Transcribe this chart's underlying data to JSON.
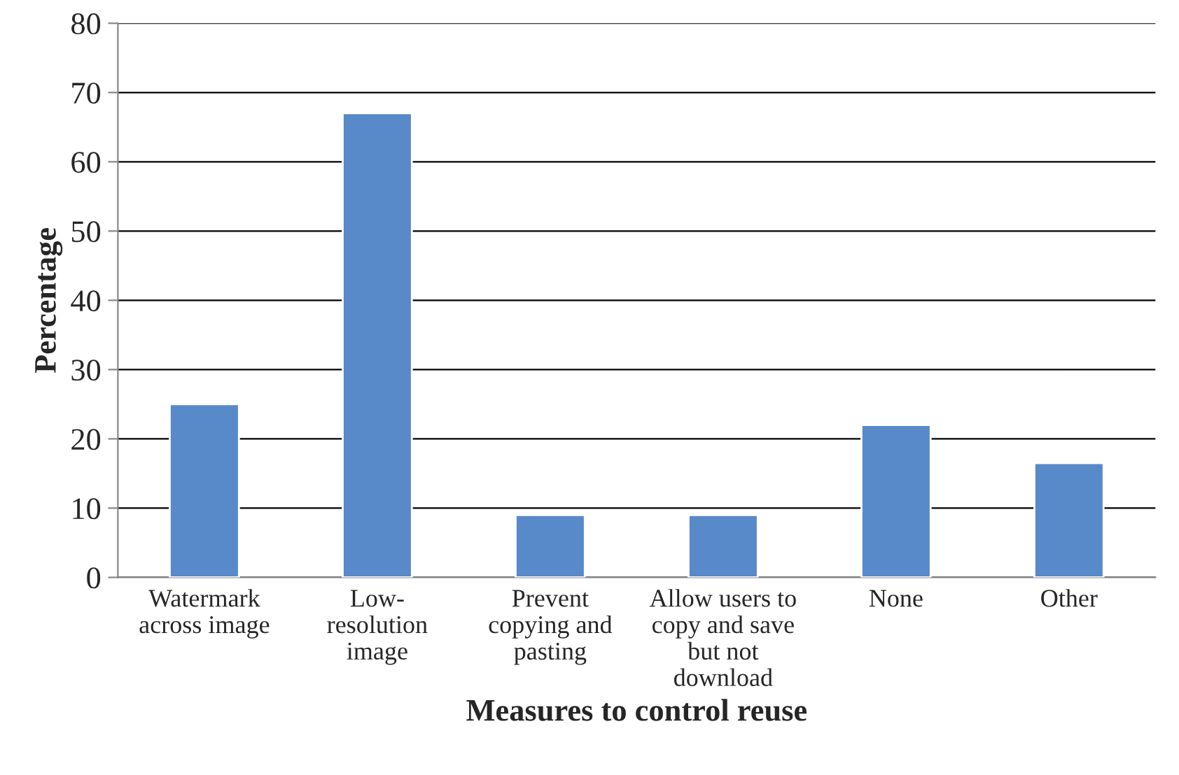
{
  "chart_data": {
    "type": "bar",
    "xlabel": "Measures to control reuse",
    "ylabel": "Percentage",
    "categories": [
      "Watermark\nacross image",
      "Low-\nresolution\nimage",
      "Prevent\ncopying and\npasting",
      "Allow users to\ncopy and save\nbut not\ndownload",
      "None",
      "Other"
    ],
    "values": [
      25,
      67,
      9,
      9,
      22,
      16.5
    ],
    "color": "#5889c8",
    "ylim": [
      0,
      80
    ],
    "yticks": [
      0,
      10,
      20,
      30,
      40,
      50,
      60,
      70,
      80
    ],
    "grid": "y",
    "legend": false
  }
}
